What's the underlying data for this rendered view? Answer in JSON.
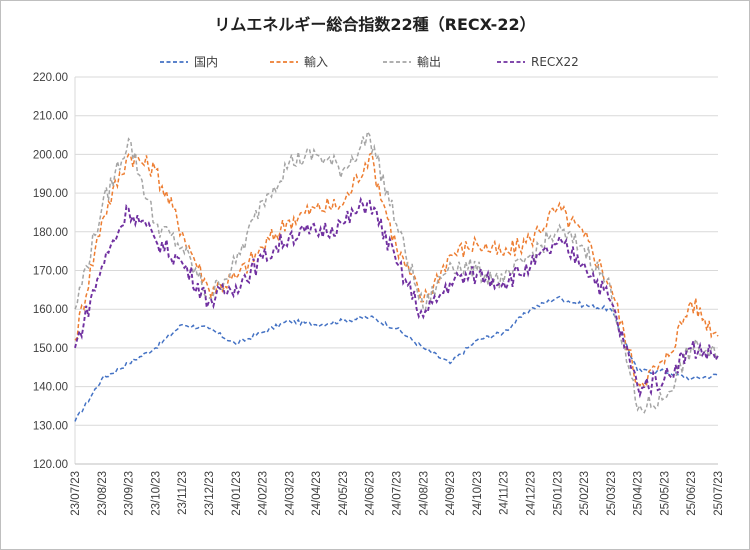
{
  "chart_data": {
    "type": "line",
    "title": "リムエネルギー総合指数22種（RECX-22）",
    "xlabel": "",
    "ylabel": "",
    "ylim": [
      120,
      220
    ],
    "yticks": [
      "120.00",
      "130.00",
      "140.00",
      "150.00",
      "160.00",
      "170.00",
      "180.00",
      "190.00",
      "200.00",
      "210.00",
      "220.00"
    ],
    "categories": [
      "23/07/23",
      "23/08/23",
      "23/09/23",
      "23/10/23",
      "23/11/23",
      "23/12/23",
      "24/01/23",
      "24/02/23",
      "24/03/23",
      "24/04/23",
      "24/05/23",
      "24/06/23",
      "24/07/23",
      "24/08/23",
      "24/09/23",
      "24/10/23",
      "24/11/23",
      "24/12/23",
      "25/01/23",
      "25/02/23",
      "25/03/23",
      "25/04/23",
      "25/05/23",
      "25/06/23",
      "25/07/23"
    ],
    "grid": true,
    "legend_position": "top",
    "series": [
      {
        "name": "国内",
        "color": "#4472c4",
        "values": [
          131,
          142,
          146,
          150,
          156,
          155,
          151,
          154,
          157,
          156,
          157,
          158,
          155,
          150,
          146,
          152,
          154,
          160,
          163,
          161,
          160,
          144,
          144,
          142,
          143
        ]
      },
      {
        "name": "輸入",
        "color": "#ed7d31",
        "values": [
          152,
          183,
          200,
          196,
          180,
          165,
          168,
          176,
          183,
          186,
          187,
          200,
          176,
          162,
          174,
          177,
          174,
          178,
          186,
          179,
          166,
          141,
          146,
          162,
          153
        ]
      },
      {
        "name": "輸出",
        "color": "#a5a5a5",
        "values": [
          160,
          186,
          204,
          182,
          176,
          163,
          172,
          188,
          198,
          200,
          196,
          205,
          182,
          160,
          172,
          170,
          167,
          174,
          180,
          176,
          165,
          134,
          137,
          150,
          148
        ]
      },
      {
        "name": "RECX22",
        "color": "#7030a0",
        "values": [
          150,
          171,
          186,
          178,
          172,
          162,
          166,
          173,
          179,
          180,
          182,
          188,
          172,
          158,
          167,
          169,
          167,
          171,
          177,
          172,
          162,
          140,
          142,
          150,
          148
        ]
      }
    ]
  }
}
